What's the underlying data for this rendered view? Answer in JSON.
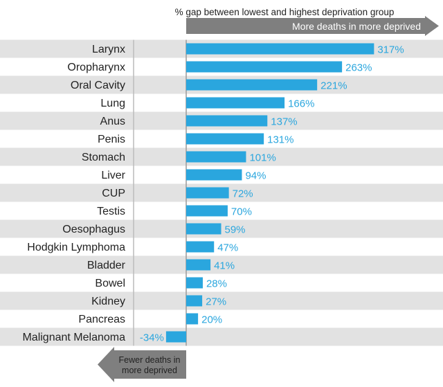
{
  "chart_data": {
    "type": "bar",
    "orientation": "horizontal",
    "title": "% gap between lowest and highest deprivation group",
    "positive_label": "More deaths in more deprived",
    "negative_label_lines": [
      "Fewer deaths in",
      "more deprived"
    ],
    "categories": [
      "Larynx",
      "Oropharynx",
      "Oral Cavity",
      "Lung",
      "Anus",
      "Penis",
      "Stomach",
      "Liver",
      "CUP",
      "Testis",
      "Oesophagus",
      "Hodgkin Lymphoma",
      "Bladder",
      "Bowel",
      "Kidney",
      "Pancreas",
      "Malignant Melanoma"
    ],
    "values": [
      317,
      263,
      221,
      166,
      137,
      131,
      101,
      94,
      72,
      70,
      59,
      47,
      41,
      28,
      27,
      20,
      -34
    ],
    "value_labels": [
      "317%",
      "263%",
      "221%",
      "166%",
      "137%",
      "131%",
      "101%",
      "94%",
      "72%",
      "70%",
      "59%",
      "47%",
      "41%",
      "28%",
      "27%",
      "20%",
      "-34%"
    ],
    "colors": {
      "bar": "#2aa6de",
      "label": "#2aa6de",
      "stripe": "#e2e2e2",
      "arrow": "#7f7f7f",
      "axis": "#999999"
    }
  }
}
